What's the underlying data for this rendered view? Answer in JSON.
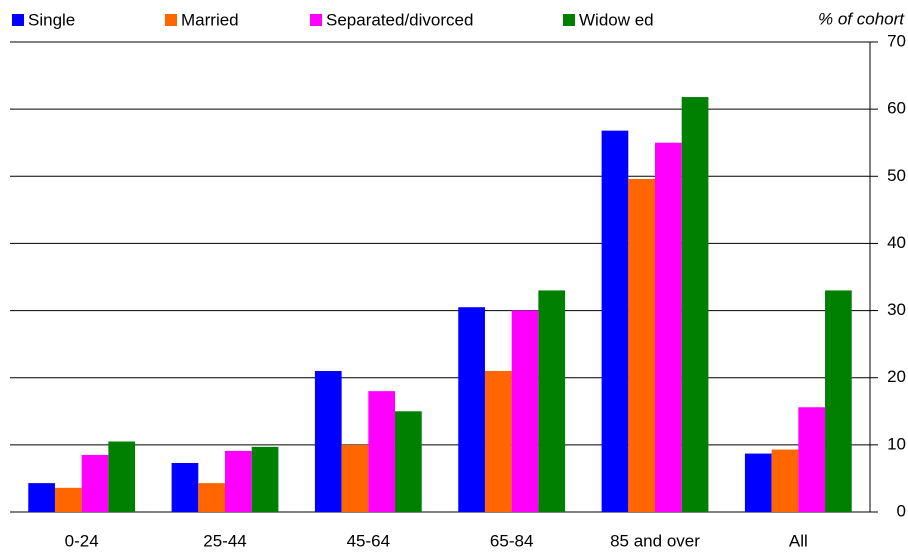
{
  "chart_data": {
    "type": "bar",
    "y_axis_label": "% of cohort",
    "categories": [
      "0-24",
      "25-44",
      "45-64",
      "65-84",
      "85 and over",
      "All"
    ],
    "series": [
      {
        "name": "Single",
        "color": "#0000ff",
        "values": [
          4.3,
          7.3,
          21,
          30.5,
          56.8,
          8.7
        ]
      },
      {
        "name": "Married",
        "color": "#ff6600",
        "values": [
          3.6,
          4.3,
          10,
          21,
          49.6,
          9.3
        ]
      },
      {
        "name": "Separated/divorced",
        "color": "#ff00ff",
        "values": [
          8.5,
          9.1,
          18,
          30,
          55,
          15.6
        ]
      },
      {
        "name": "Widow ed",
        "color": "#008000",
        "values": [
          10.5,
          9.7,
          15,
          33,
          61.8,
          33
        ]
      }
    ],
    "ylim": [
      0,
      70
    ],
    "yticks": [
      0,
      10,
      20,
      30,
      40,
      50,
      60,
      70
    ],
    "grid": true,
    "y_axis_side": "right",
    "legend": "top"
  }
}
